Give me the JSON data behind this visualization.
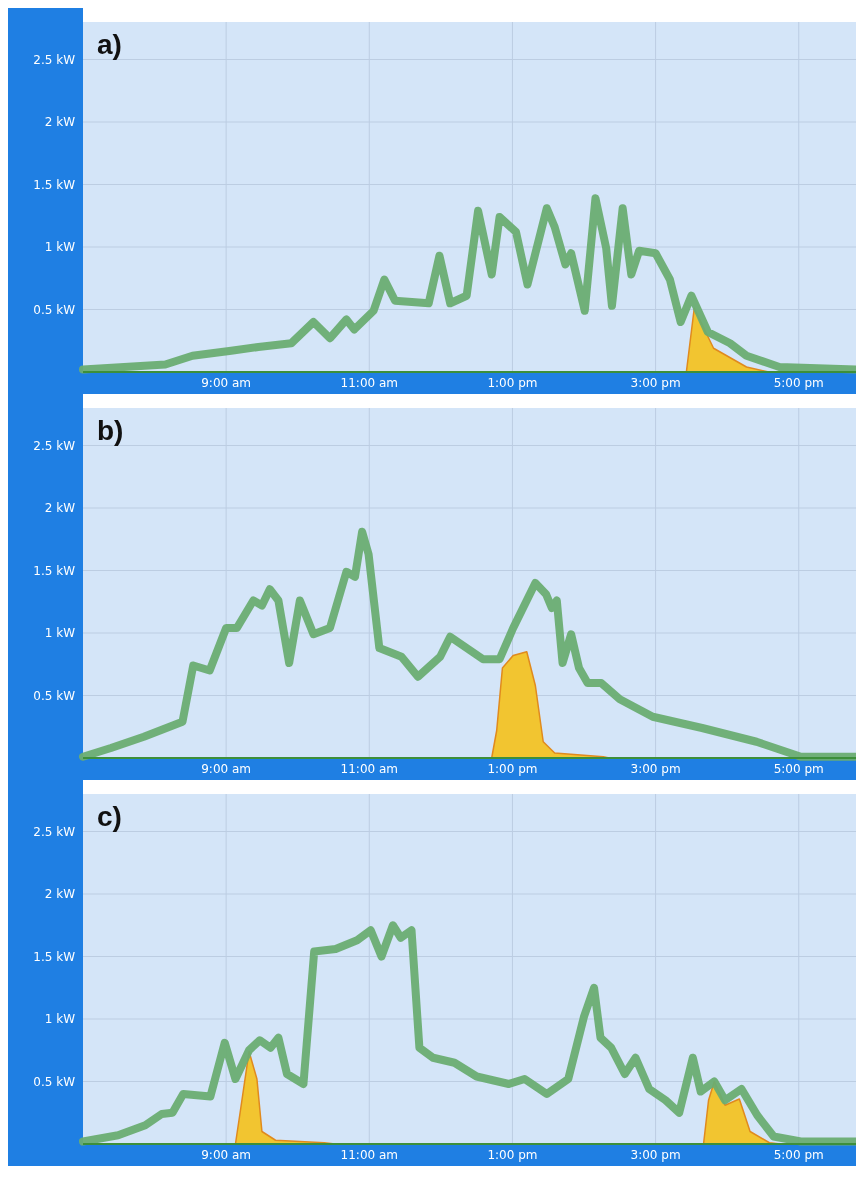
{
  "chart_data": [
    {
      "type": "line",
      "title": "a)",
      "xlim": [
        7,
        17.8
      ],
      "ylim": [
        0,
        2.8
      ],
      "grid": true,
      "xticks": [
        {
          "value": 9,
          "label": "9:00 am"
        },
        {
          "value": 11,
          "label": "11:00 am"
        },
        {
          "value": 13,
          "label": "1:00 pm"
        },
        {
          "value": 15,
          "label": "3:00 pm"
        },
        {
          "value": 17,
          "label": "5:00 pm"
        }
      ],
      "yticks": [
        {
          "value": 0.5,
          "label": "0.5 kW"
        },
        {
          "value": 1,
          "label": "1 kW"
        },
        {
          "value": 1.5,
          "label": "1.5 kW"
        },
        {
          "value": 2,
          "label": "2 kW"
        },
        {
          "value": 2.5,
          "label": "2.5 kW"
        }
      ],
      "series": [
        {
          "type": "area",
          "color": "#f2c530",
          "x": [
            7,
            15.43,
            15.54,
            15.81,
            16.27,
            16.58,
            17.8
          ],
          "values": [
            0,
            0,
            0.51,
            0.19,
            0.04,
            0,
            0
          ]
        },
        {
          "color": "#6aad72",
          "x": [
            7.0,
            8.15,
            8.53,
            9.07,
            9.45,
            9.91,
            10.22,
            10.45,
            10.68,
            10.79,
            11.06,
            11.21,
            11.36,
            11.83,
            11.98,
            12.13,
            12.36,
            12.52,
            12.71,
            12.82,
            13.05,
            13.21,
            13.48,
            13.59,
            13.74,
            13.82,
            14.01,
            14.16,
            14.31,
            14.39,
            14.54,
            14.66,
            14.77,
            15.0,
            15.2,
            15.35,
            15.5,
            15.73,
            16.04,
            16.27,
            16.73,
            17.8
          ],
          "values": [
            0.02,
            0.06,
            0.13,
            0.17,
            0.2,
            0.23,
            0.4,
            0.27,
            0.42,
            0.34,
            0.49,
            0.74,
            0.57,
            0.55,
            0.93,
            0.55,
            0.61,
            1.29,
            0.78,
            1.24,
            1.12,
            0.7,
            1.31,
            1.16,
            0.86,
            0.95,
            0.49,
            1.39,
            0.99,
            0.53,
            1.31,
            0.78,
            0.97,
            0.95,
            0.74,
            0.4,
            0.61,
            0.32,
            0.23,
            0.13,
            0.04,
            0.02
          ]
        }
      ]
    },
    {
      "type": "line",
      "title": "b)",
      "xlim": [
        7,
        17.8
      ],
      "ylim": [
        0,
        2.8
      ],
      "grid": true,
      "xticks": [
        {
          "value": 9,
          "label": "9:00 am"
        },
        {
          "value": 11,
          "label": "11:00 am"
        },
        {
          "value": 13,
          "label": "1:00 pm"
        },
        {
          "value": 15,
          "label": "3:00 pm"
        },
        {
          "value": 17,
          "label": "5:00 pm"
        }
      ],
      "yticks": [
        {
          "value": 0.5,
          "label": "0.5 kW"
        },
        {
          "value": 1,
          "label": "1 kW"
        },
        {
          "value": 1.5,
          "label": "1.5 kW"
        },
        {
          "value": 2,
          "label": "2 kW"
        },
        {
          "value": 2.5,
          "label": "2.5 kW"
        }
      ],
      "series": [
        {
          "type": "area",
          "color": "#f2c530",
          "x": [
            7,
            12.71,
            12.78,
            12.86,
            13.01,
            13.2,
            13.32,
            13.43,
            13.59,
            14.27,
            14.35,
            17.8
          ],
          "values": [
            0,
            0,
            0.22,
            0.72,
            0.82,
            0.85,
            0.58,
            0.13,
            0.04,
            0.01,
            0,
            0
          ]
        },
        {
          "color": "#6aad72",
          "x": [
            7.0,
            7.39,
            7.85,
            8.39,
            8.54,
            8.77,
            9.0,
            9.15,
            9.38,
            9.5,
            9.61,
            9.73,
            9.88,
            10.03,
            10.22,
            10.45,
            10.68,
            10.8,
            10.9,
            10.99,
            11.14,
            11.45,
            11.68,
            11.99,
            12.13,
            12.36,
            12.59,
            12.82,
            13.01,
            13.32,
            13.47,
            13.55,
            13.62,
            13.7,
            13.82,
            13.93,
            14.05,
            14.24,
            14.5,
            14.96,
            15.65,
            16.41,
            17.03,
            17.8
          ],
          "values": [
            0.01,
            0.08,
            0.17,
            0.29,
            0.74,
            0.7,
            1.04,
            1.04,
            1.26,
            1.22,
            1.35,
            1.26,
            0.76,
            1.26,
            0.99,
            1.04,
            1.49,
            1.45,
            1.81,
            1.63,
            0.88,
            0.81,
            0.65,
            0.81,
            0.97,
            0.88,
            0.79,
            0.79,
            1.04,
            1.4,
            1.31,
            1.2,
            1.26,
            0.76,
            0.99,
            0.72,
            0.6,
            0.6,
            0.47,
            0.33,
            0.24,
            0.13,
            0.01,
            0.01
          ]
        }
      ]
    },
    {
      "type": "line",
      "title": "c)",
      "xlim": [
        7,
        17.8
      ],
      "ylim": [
        0,
        2.8
      ],
      "grid": true,
      "xticks": [
        {
          "value": 9,
          "label": "9:00 am"
        },
        {
          "value": 11,
          "label": "11:00 am"
        },
        {
          "value": 13,
          "label": "1:00 pm"
        },
        {
          "value": 15,
          "label": "3:00 pm"
        },
        {
          "value": 17,
          "label": "5:00 pm"
        }
      ],
      "yticks": [
        {
          "value": 0.5,
          "label": "0.5 kW"
        },
        {
          "value": 1,
          "label": "1 kW"
        },
        {
          "value": 1.5,
          "label": "1.5 kW"
        },
        {
          "value": 2,
          "label": "2 kW"
        },
        {
          "value": 2.5,
          "label": "2.5 kW"
        }
      ],
      "series": [
        {
          "type": "area",
          "color": "#f2c530",
          "x": [
            7,
            9.13,
            9.2,
            9.32,
            9.43,
            9.5,
            9.69,
            10.37,
            10.52,
            15.67,
            15.74,
            15.82,
            15.97,
            16.17,
            16.32,
            16.59,
            16.74,
            17.8
          ],
          "values": [
            0,
            0,
            0.27,
            0.74,
            0.52,
            0.1,
            0.03,
            0.01,
            0,
            0,
            0.35,
            0.5,
            0.31,
            0.36,
            0.1,
            0.01,
            0,
            0
          ]
        },
        {
          "color": "#6aad72",
          "x": [
            7.0,
            7.49,
            7.87,
            8.1,
            8.25,
            8.4,
            8.78,
            8.98,
            9.13,
            9.32,
            9.47,
            9.62,
            9.73,
            9.85,
            10.08,
            10.23,
            10.53,
            10.83,
            11.02,
            11.17,
            11.33,
            11.44,
            11.59,
            11.7,
            11.89,
            12.19,
            12.5,
            12.95,
            13.17,
            13.48,
            13.78,
            14.0,
            14.14,
            14.23,
            14.38,
            14.57,
            14.72,
            14.91,
            15.14,
            15.33,
            15.52,
            15.63,
            15.82,
            15.97,
            16.2,
            16.42,
            16.65,
            17.03,
            17.8
          ],
          "values": [
            0.02,
            0.07,
            0.15,
            0.24,
            0.25,
            0.4,
            0.38,
            0.81,
            0.52,
            0.75,
            0.83,
            0.77,
            0.85,
            0.56,
            0.48,
            1.54,
            1.56,
            1.63,
            1.71,
            1.5,
            1.75,
            1.65,
            1.71,
            0.77,
            0.69,
            0.65,
            0.54,
            0.48,
            0.52,
            0.4,
            0.52,
            1.02,
            1.25,
            0.85,
            0.77,
            0.56,
            0.69,
            0.44,
            0.35,
            0.25,
            0.69,
            0.42,
            0.5,
            0.35,
            0.44,
            0.23,
            0.06,
            0.02,
            0.02
          ]
        }
      ]
    }
  ]
}
